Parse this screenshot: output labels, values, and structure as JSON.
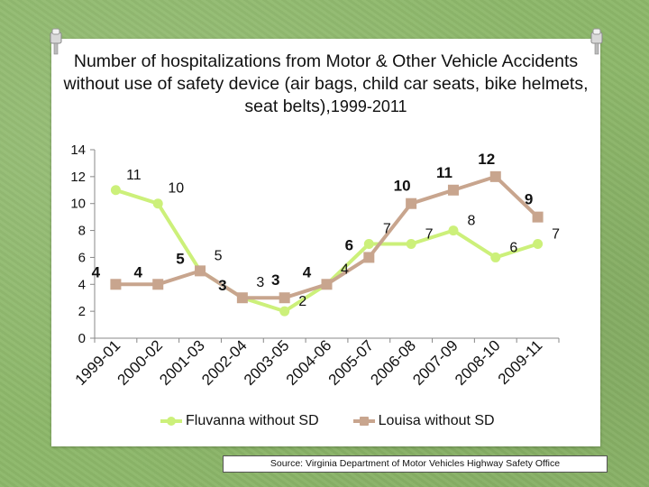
{
  "slide": {
    "title_main": "Number of hospitalizations from Motor & Other Vehicle Accidents without use of safety device (air bags, child car seats, bike helmets, seat belts),",
    "title_years": "1999-2011",
    "source": "Source: Virginia Department of Motor Vehicles Highway Safety Office"
  },
  "colors": {
    "fluvanna": "#ccf07a",
    "louisa": "#c8a58e",
    "axis": "#888888",
    "text": "#111111"
  },
  "chart_data": {
    "type": "line",
    "title": "Number of hospitalizations from Motor & Other Vehicle Accidents without use of safety device (air bags, child car seats, bike helmets, seat belts), 1999-2011",
    "xlabel": "",
    "ylabel": "",
    "ylim": [
      0,
      14
    ],
    "yticks": [
      "0",
      "2",
      "4",
      "6",
      "8",
      "10",
      "12",
      "14"
    ],
    "categories": [
      "1999-01",
      "2000-02",
      "2001-03",
      "2002-04",
      "2003-05",
      "2004-06",
      "2005-07",
      "2006-08",
      "2007-09",
      "2008-10",
      "2009-11"
    ],
    "grid": false,
    "legend_position": "bottom",
    "series": [
      {
        "name": "Fluvanna without SD",
        "values": [
          11,
          10,
          5,
          3,
          2,
          4,
          7,
          7,
          8,
          6,
          7
        ],
        "labels": [
          "11",
          "10",
          "5",
          "3",
          "2",
          "4",
          "7",
          "7",
          "8",
          "6",
          "7"
        ]
      },
      {
        "name": "Louisa without SD",
        "values": [
          4,
          4,
          5,
          3,
          3,
          4,
          6,
          10,
          11,
          12,
          9
        ],
        "labels": [
          "4",
          "4",
          "5",
          "3",
          "3",
          "4",
          "6",
          "10",
          "11",
          "12",
          "9"
        ]
      }
    ]
  }
}
